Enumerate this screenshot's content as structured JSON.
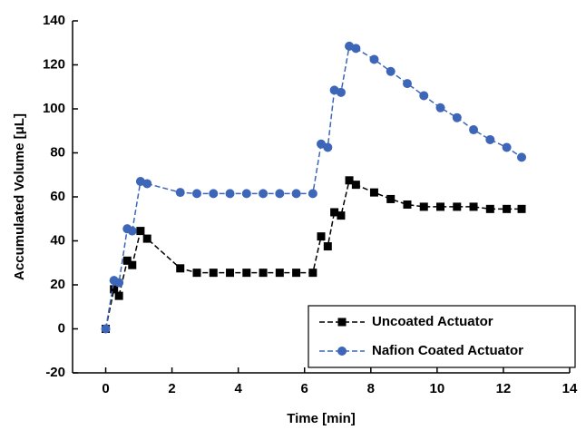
{
  "chart_data": {
    "type": "line",
    "xlabel": "Time [min]",
    "ylabel": "Accumulated Volume [μL]",
    "x": [
      0,
      0.25,
      0.4,
      0.65,
      0.8,
      1.05,
      1.25,
      2.25,
      2.75,
      3.25,
      3.75,
      4.25,
      4.75,
      5.25,
      5.75,
      6.25,
      6.5,
      6.7,
      6.9,
      7.1,
      7.35,
      7.55,
      8.1,
      8.6,
      9.1,
      9.6,
      10.1,
      10.6,
      11.1,
      11.6,
      12.1,
      12.55
    ],
    "series": [
      {
        "name": "Uncoated Actuator",
        "color": "#000000",
        "marker": "square",
        "values": [
          0,
          18,
          15,
          31,
          29,
          44.5,
          41,
          27.5,
          25.5,
          25.5,
          25.5,
          25.5,
          25.5,
          25.5,
          25.5,
          25.5,
          42,
          37.5,
          53,
          51.5,
          67.5,
          65.5,
          62,
          59,
          56.5,
          55.5,
          55.5,
          55.5,
          55.5,
          54.5,
          54.5,
          54.5
        ]
      },
      {
        "name": "Nafion Coated Actuator",
        "color": "#3d66b8",
        "marker": "circle",
        "values": [
          0,
          22,
          21,
          45.5,
          44.5,
          67,
          66,
          62,
          61.5,
          61.5,
          61.5,
          61.5,
          61.5,
          61.5,
          61.5,
          61.5,
          84,
          82.5,
          108.5,
          107.5,
          128.5,
          127.5,
          122.5,
          117,
          111.5,
          106,
          100.5,
          96,
          90.5,
          86,
          82.5,
          78
        ]
      }
    ],
    "xlim": [
      -1,
      14
    ],
    "xticks": [
      0,
      2,
      4,
      6,
      8,
      10,
      12,
      14
    ],
    "ylim": [
      -20,
      140
    ],
    "yticks": [
      -20,
      0,
      20,
      40,
      60,
      80,
      100,
      120,
      140
    ],
    "legend": "lower right"
  }
}
